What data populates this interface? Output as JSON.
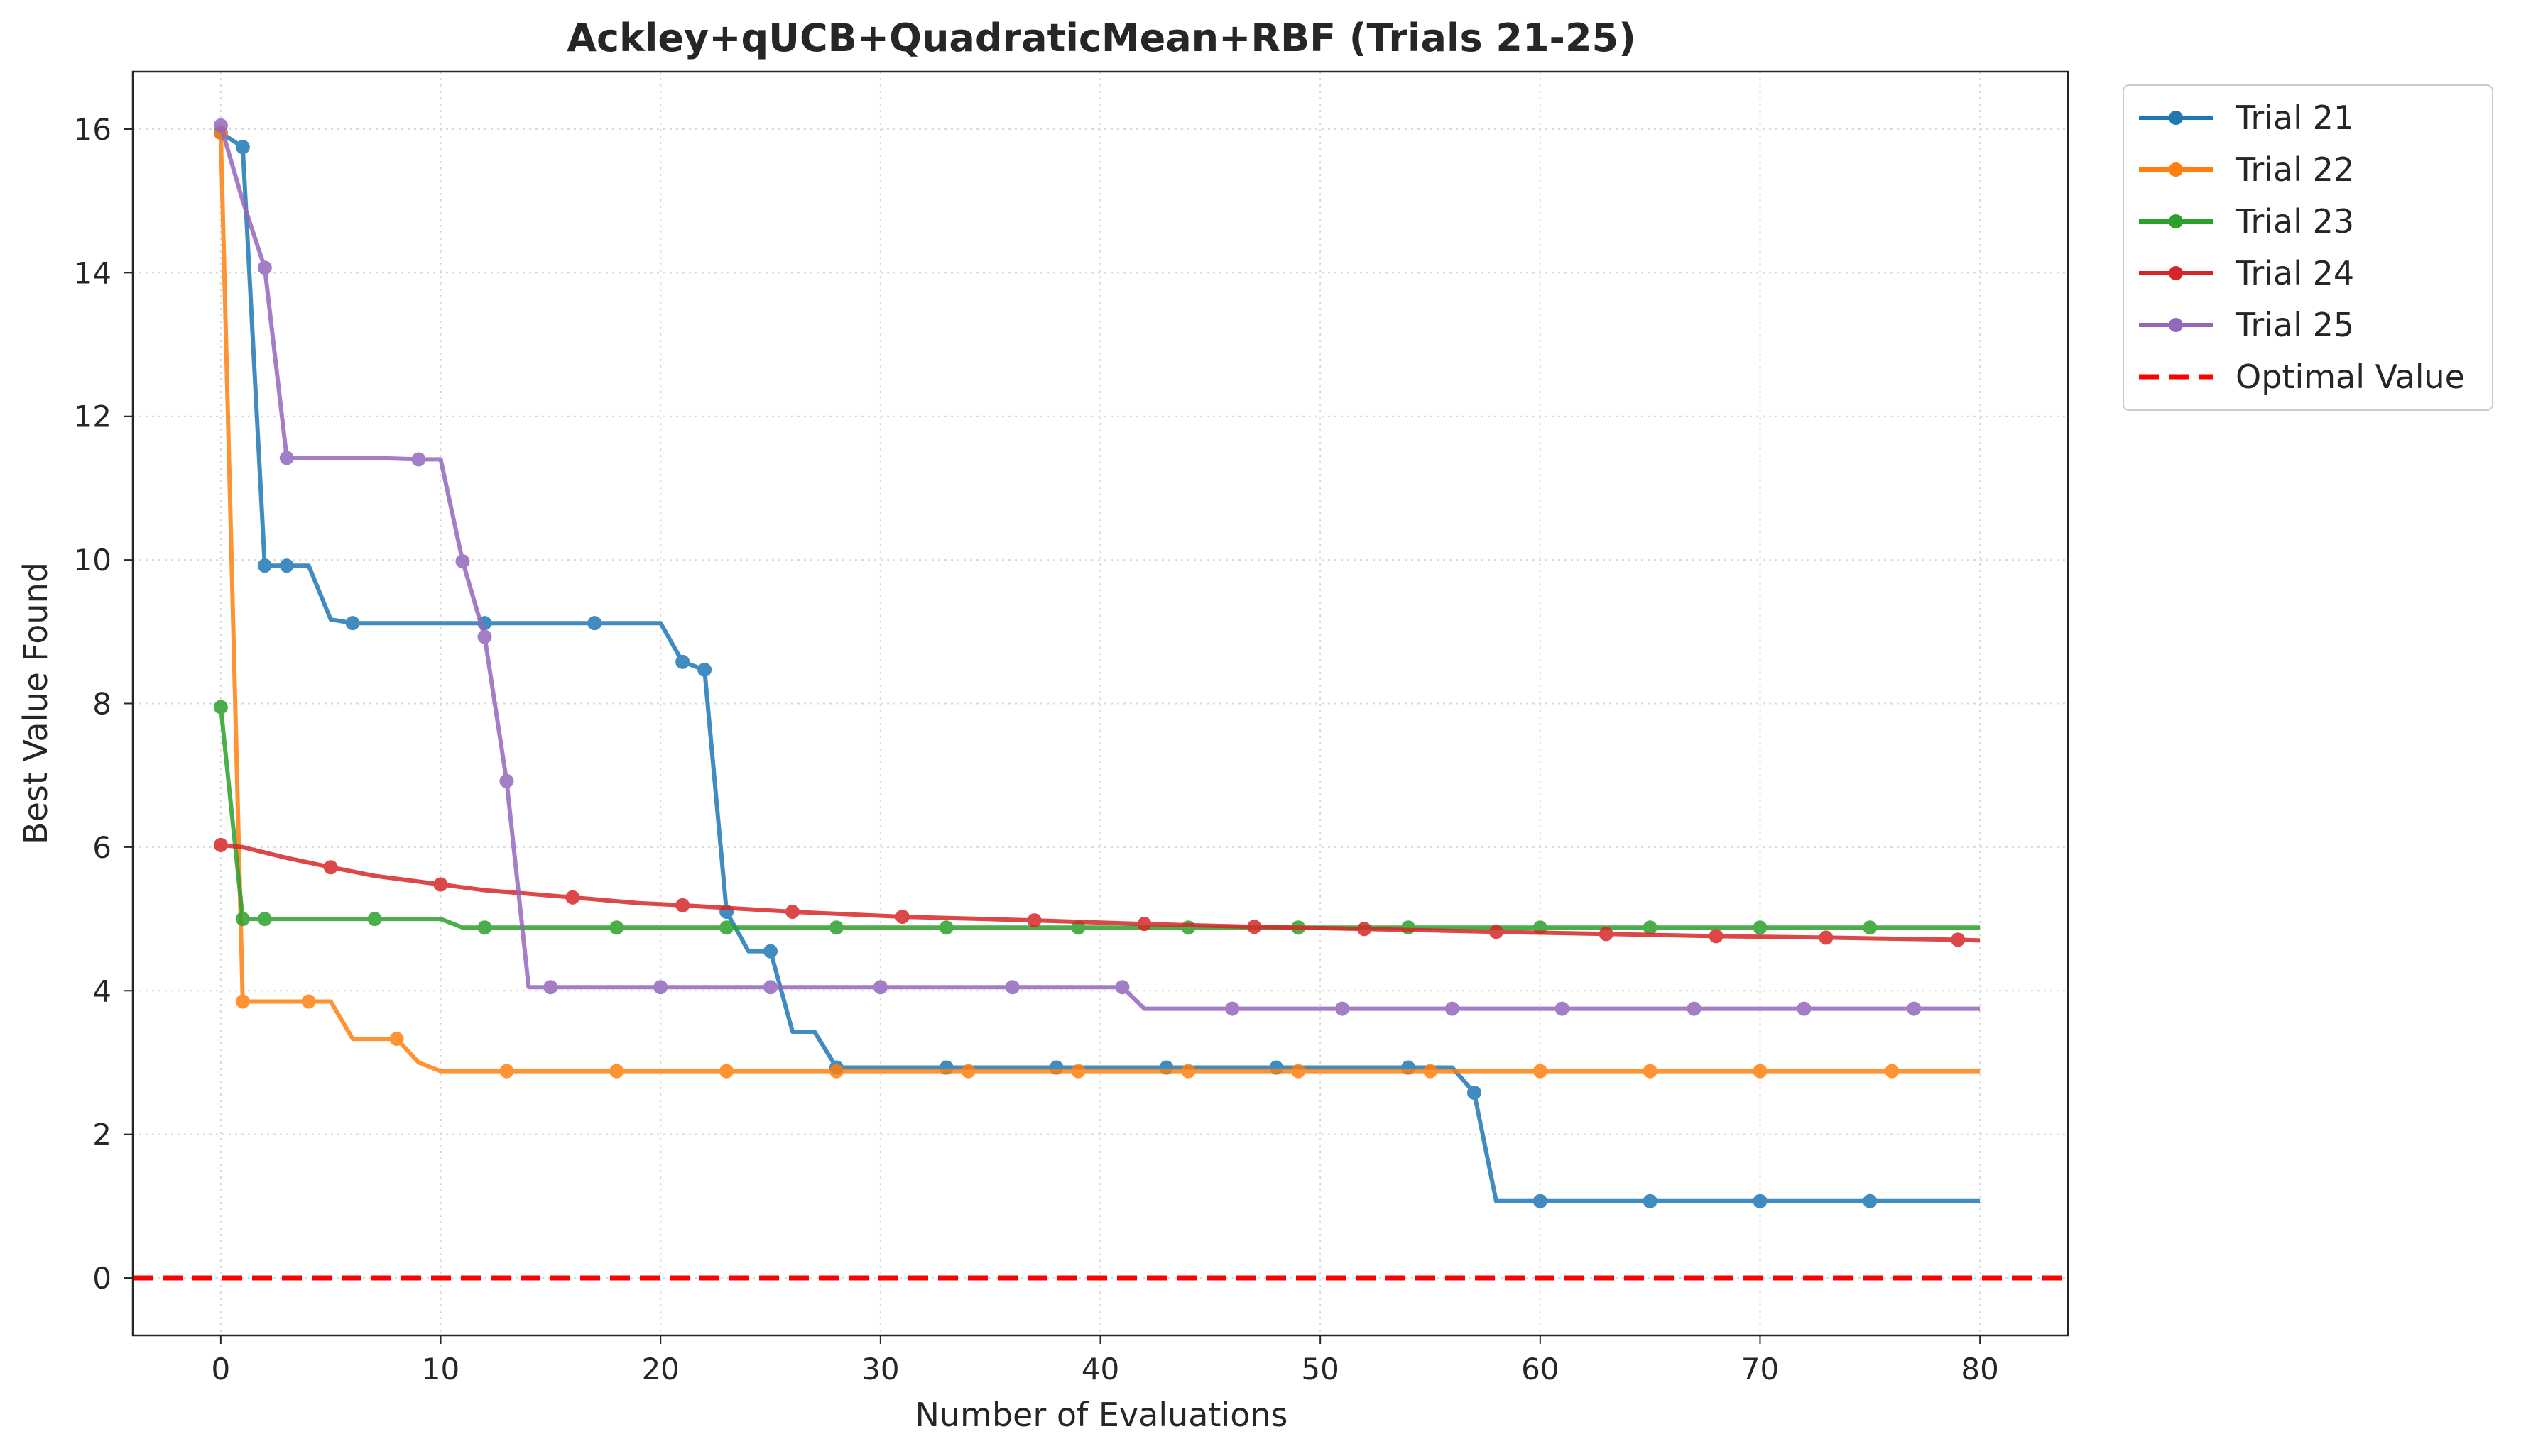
{
  "chart_data": {
    "type": "line",
    "title": "Ackley+qUCB+QuadraticMean+RBF (Trials 21-25)",
    "xlabel": "Number of Evaluations",
    "ylabel": "Best Value Found",
    "xlim": [
      -4,
      84
    ],
    "ylim": [
      -0.8,
      16.8
    ],
    "xticks": [
      0,
      10,
      20,
      30,
      40,
      50,
      60,
      70,
      80
    ],
    "yticks": [
      0,
      2,
      4,
      6,
      8,
      10,
      12,
      14,
      16
    ],
    "grid": true,
    "legend_position": "outside-top-right",
    "series": [
      {
        "name": "Trial 21",
        "color": "#1f77b4",
        "line": [
          [
            0,
            15.95
          ],
          [
            1,
            15.75
          ],
          [
            2,
            9.92
          ],
          [
            3,
            9.92
          ],
          [
            4,
            9.92
          ],
          [
            5,
            9.17
          ],
          [
            6,
            9.12
          ],
          [
            7,
            9.12
          ],
          [
            17,
            9.12
          ],
          [
            20,
            9.12
          ],
          [
            21,
            8.58
          ],
          [
            22,
            8.47
          ],
          [
            23,
            5.1
          ],
          [
            24,
            4.55
          ],
          [
            25,
            4.55
          ],
          [
            26,
            3.43
          ],
          [
            27,
            3.43
          ],
          [
            28,
            2.93
          ],
          [
            56,
            2.93
          ],
          [
            57,
            2.58
          ],
          [
            58,
            1.07
          ],
          [
            80,
            1.07
          ]
        ],
        "markers": [
          [
            0,
            15.95
          ],
          [
            1,
            15.75
          ],
          [
            2,
            9.92
          ],
          [
            3,
            9.92
          ],
          [
            6,
            9.12
          ],
          [
            12,
            9.12
          ],
          [
            17,
            9.12
          ],
          [
            21,
            8.58
          ],
          [
            22,
            8.47
          ],
          [
            23,
            5.1
          ],
          [
            25,
            4.55
          ],
          [
            28,
            2.93
          ],
          [
            33,
            2.93
          ],
          [
            38,
            2.93
          ],
          [
            43,
            2.93
          ],
          [
            48,
            2.93
          ],
          [
            54,
            2.93
          ],
          [
            57,
            2.58
          ],
          [
            60,
            1.07
          ],
          [
            65,
            1.07
          ],
          [
            70,
            1.07
          ],
          [
            75,
            1.07
          ]
        ]
      },
      {
        "name": "Trial 22",
        "color": "#ff7f0e",
        "line": [
          [
            0,
            15.95
          ],
          [
            1,
            3.85
          ],
          [
            4,
            3.85
          ],
          [
            5,
            3.85
          ],
          [
            6,
            3.33
          ],
          [
            8,
            3.33
          ],
          [
            9,
            3.0
          ],
          [
            10,
            2.88
          ],
          [
            80,
            2.88
          ]
        ],
        "markers": [
          [
            0,
            15.95
          ],
          [
            1,
            3.85
          ],
          [
            4,
            3.85
          ],
          [
            8,
            3.33
          ],
          [
            13,
            2.88
          ],
          [
            18,
            2.88
          ],
          [
            23,
            2.88
          ],
          [
            28,
            2.88
          ],
          [
            34,
            2.88
          ],
          [
            39,
            2.88
          ],
          [
            44,
            2.88
          ],
          [
            49,
            2.88
          ],
          [
            55,
            2.88
          ],
          [
            60,
            2.88
          ],
          [
            65,
            2.88
          ],
          [
            70,
            2.88
          ],
          [
            76,
            2.88
          ]
        ]
      },
      {
        "name": "Trial 23",
        "color": "#2ca02c",
        "line": [
          [
            0,
            7.95
          ],
          [
            1,
            5.0
          ],
          [
            10,
            5.0
          ],
          [
            11,
            4.88
          ],
          [
            80,
            4.88
          ]
        ],
        "markers": [
          [
            0,
            7.95
          ],
          [
            1,
            5.0
          ],
          [
            2,
            5.0
          ],
          [
            7,
            5.0
          ],
          [
            12,
            4.88
          ],
          [
            18,
            4.88
          ],
          [
            23,
            4.88
          ],
          [
            28,
            4.88
          ],
          [
            33,
            4.88
          ],
          [
            39,
            4.88
          ],
          [
            44,
            4.88
          ],
          [
            49,
            4.88
          ],
          [
            54,
            4.88
          ],
          [
            60,
            4.88
          ],
          [
            65,
            4.88
          ],
          [
            70,
            4.88
          ],
          [
            75,
            4.88
          ]
        ]
      },
      {
        "name": "Trial 24",
        "color": "#d62728",
        "line": [
          [
            0,
            6.03
          ],
          [
            1,
            6.0
          ],
          [
            3,
            5.85
          ],
          [
            5,
            5.72
          ],
          [
            7,
            5.6
          ],
          [
            10,
            5.48
          ],
          [
            12,
            5.4
          ],
          [
            16,
            5.3
          ],
          [
            19,
            5.22
          ],
          [
            21,
            5.19
          ],
          [
            26,
            5.1
          ],
          [
            31,
            5.03
          ],
          [
            37,
            4.98
          ],
          [
            42,
            4.93
          ],
          [
            47,
            4.89
          ],
          [
            52,
            4.86
          ],
          [
            58,
            4.82
          ],
          [
            63,
            4.79
          ],
          [
            68,
            4.76
          ],
          [
            73,
            4.74
          ],
          [
            79,
            4.71
          ],
          [
            80,
            4.7
          ]
        ],
        "markers": [
          [
            0,
            6.03
          ],
          [
            5,
            5.72
          ],
          [
            10,
            5.48
          ],
          [
            16,
            5.3
          ],
          [
            21,
            5.19
          ],
          [
            26,
            5.1
          ],
          [
            31,
            5.03
          ],
          [
            37,
            4.98
          ],
          [
            42,
            4.93
          ],
          [
            47,
            4.89
          ],
          [
            52,
            4.86
          ],
          [
            58,
            4.82
          ],
          [
            63,
            4.79
          ],
          [
            68,
            4.76
          ],
          [
            73,
            4.74
          ],
          [
            79,
            4.71
          ]
        ]
      },
      {
        "name": "Trial 25",
        "color": "#9467bd",
        "line": [
          [
            0,
            16.05
          ],
          [
            1,
            15.0
          ],
          [
            2,
            14.07
          ],
          [
            3,
            11.42
          ],
          [
            7,
            11.42
          ],
          [
            9,
            11.4
          ],
          [
            10,
            11.4
          ],
          [
            11,
            9.98
          ],
          [
            12,
            8.93
          ],
          [
            13,
            6.92
          ],
          [
            14,
            4.05
          ],
          [
            41,
            4.05
          ],
          [
            42,
            3.75
          ],
          [
            80,
            3.75
          ]
        ],
        "markers": [
          [
            0,
            16.05
          ],
          [
            2,
            14.07
          ],
          [
            3,
            11.42
          ],
          [
            9,
            11.4
          ],
          [
            11,
            9.98
          ],
          [
            12,
            8.93
          ],
          [
            13,
            6.92
          ],
          [
            15,
            4.05
          ],
          [
            20,
            4.05
          ],
          [
            25,
            4.05
          ],
          [
            30,
            4.05
          ],
          [
            36,
            4.05
          ],
          [
            41,
            4.05
          ],
          [
            46,
            3.75
          ],
          [
            51,
            3.75
          ],
          [
            56,
            3.75
          ],
          [
            61,
            3.75
          ],
          [
            67,
            3.75
          ],
          [
            72,
            3.75
          ],
          [
            77,
            3.75
          ]
        ]
      }
    ],
    "reference_line": {
      "name": "Optimal Value",
      "y": 0,
      "color": "#ff0000",
      "style": "dashed"
    }
  }
}
